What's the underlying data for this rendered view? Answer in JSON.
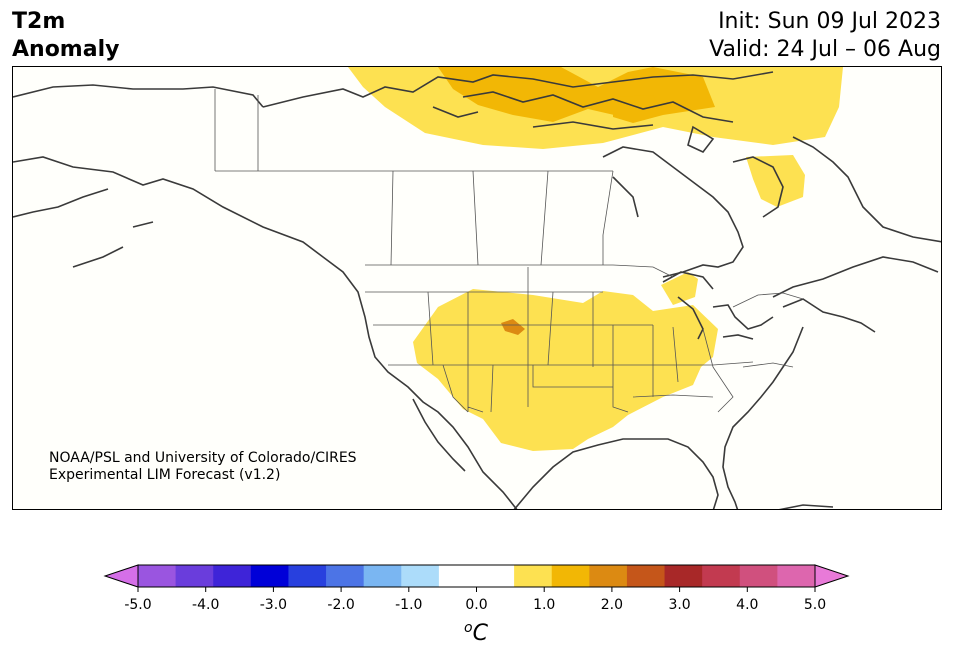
{
  "title": {
    "variable_line1": "T2m",
    "variable_line2": "Anomaly",
    "init": "Init: Sun 09 Jul 2023",
    "valid": "Valid: 24 Jul – 06 Aug"
  },
  "credit": {
    "line1": "NOAA/PSL and University of Colorado/CIRES",
    "line2": "Experimental LIM Forecast (v1.2)"
  },
  "colorbar": {
    "unit_label_base": "o",
    "unit_label_main": "C",
    "ticks": [
      "-5.0",
      "-4.0",
      "-3.0",
      "-2.0",
      "-1.0",
      "0.0",
      "1.0",
      "2.0",
      "3.0",
      "4.0",
      "5.0"
    ],
    "under_color": "#d56fe8",
    "over_color": "#e87ad8",
    "colors": [
      "#d56fe8",
      "#9a55e0",
      "#6a3ddc",
      "#3e24d8",
      "#0000d8",
      "#2840de",
      "#4c74e6",
      "#7ab6f2",
      "#acdcfa",
      "#ffffff",
      "#ffffff",
      "#fde151",
      "#f2b705",
      "#dc8a12",
      "#c5561a",
      "#a82828",
      "#c23a50",
      "#d0507e",
      "#dd66ae",
      "#e87ad8"
    ]
  },
  "map": {
    "anomaly_colors": {
      "light": "#fde151",
      "medium": "#f2b705",
      "dark": "#dc8a12"
    },
    "coast_color": "#3a3a3a"
  }
}
